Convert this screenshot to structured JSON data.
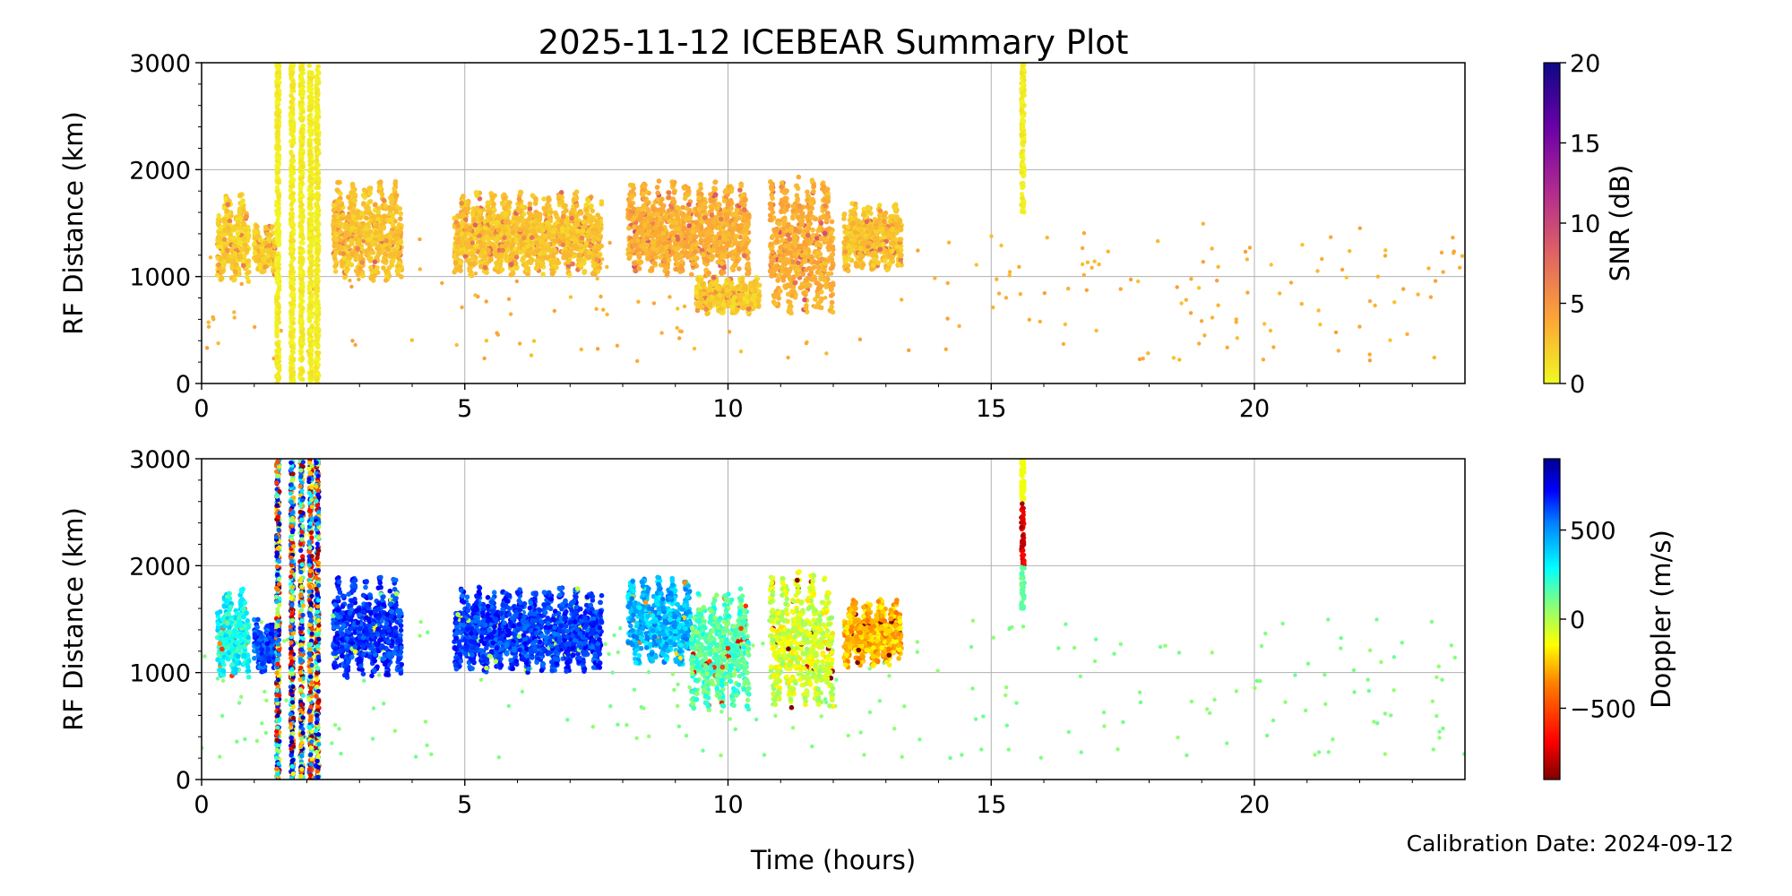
{
  "figure": {
    "title": "2025-11-12 ICEBEAR Summary Plot",
    "xlabel": "Time (hours)",
    "footer": "Calibration Date: 2024-09-12"
  },
  "chart_data": [
    {
      "type": "scatter",
      "panel": "top",
      "title": "2025-11-12 ICEBEAR Summary Plot",
      "xlabel": "Time (hours)",
      "ylabel": "RF Distance (km)",
      "xlim": [
        0,
        24
      ],
      "ylim": [
        0,
        3000
      ],
      "xticks": [
        0,
        5,
        10,
        15,
        20
      ],
      "yticks": [
        0,
        1000,
        2000,
        3000
      ],
      "grid": true,
      "color_by": "SNR",
      "colorbar": {
        "label": "SNR (dB)",
        "range": [
          0,
          20
        ],
        "ticks": [
          0,
          5,
          10,
          15,
          20
        ],
        "colormap": "plasma_r",
        "colors": [
          "#f0f921",
          "#fca636",
          "#e16462",
          "#b12a90",
          "#6a00a8",
          "#0d0887"
        ]
      },
      "vertical_bands": [
        {
          "x": 1.45,
          "from": 0,
          "to": 3000
        },
        {
          "x": 1.72,
          "from": 0,
          "to": 3000
        },
        {
          "x": 1.9,
          "from": 0,
          "to": 3000
        },
        {
          "x": 2.07,
          "from": 0,
          "to": 3000
        },
        {
          "x": 2.2,
          "from": 0,
          "to": 3000
        },
        {
          "x": 15.6,
          "from": 1600,
          "to": 3000
        }
      ],
      "clusters": [
        {
          "x_start": 0.3,
          "x_end": 0.9,
          "y_min": 950,
          "y_max": 1800,
          "snr": 2
        },
        {
          "x_start": 1.0,
          "x_end": 1.4,
          "y_min": 1000,
          "y_max": 1500,
          "snr": 2
        },
        {
          "x_start": 2.5,
          "x_end": 3.8,
          "y_min": 950,
          "y_max": 1900,
          "snr": 2.5
        },
        {
          "x_start": 4.8,
          "x_end": 7.6,
          "y_min": 1000,
          "y_max": 1800,
          "snr": 2.5
        },
        {
          "x_start": 8.1,
          "x_end": 10.4,
          "y_min": 1000,
          "y_max": 1900,
          "snr": 3.5
        },
        {
          "x_start": 9.4,
          "x_end": 10.6,
          "y_min": 650,
          "y_max": 1000,
          "snr": 2
        },
        {
          "x_start": 10.8,
          "x_end": 12.0,
          "y_min": 650,
          "y_max": 1950,
          "snr": 3.5
        },
        {
          "x_start": 12.2,
          "x_end": 13.3,
          "y_min": 1050,
          "y_max": 1700,
          "snr": 2.5
        }
      ],
      "scattered": {
        "x_range": [
          0,
          24
        ],
        "y_range": [
          200,
          1500
        ],
        "snr": 3
      }
    },
    {
      "type": "scatter",
      "panel": "bottom",
      "xlabel": "Time (hours)",
      "ylabel": "RF Distance (km)",
      "xlim": [
        0,
        24
      ],
      "ylim": [
        0,
        3000
      ],
      "xticks": [
        0,
        5,
        10,
        15,
        20
      ],
      "yticks": [
        0,
        1000,
        2000,
        3000
      ],
      "grid": true,
      "color_by": "Doppler",
      "colorbar": {
        "label": "Doppler (m/s)",
        "range": [
          -900,
          900
        ],
        "ticks": [
          -500,
          0,
          500
        ],
        "tick_labels": [
          "−500",
          "0",
          "500"
        ],
        "colormap": "jet_r",
        "colors": [
          "#7f0000",
          "#ff0000",
          "#ff8000",
          "#ffff00",
          "#80ff80",
          "#00ffff",
          "#0080ff",
          "#0000ff",
          "#00008f"
        ]
      },
      "vertical_bands": [
        {
          "x": 1.45,
          "from": 0,
          "to": 3000
        },
        {
          "x": 1.72,
          "from": 0,
          "to": 3000
        },
        {
          "x": 1.9,
          "from": 0,
          "to": 3000
        },
        {
          "x": 2.07,
          "from": 0,
          "to": 3000
        },
        {
          "x": 2.2,
          "from": 0,
          "to": 3000
        },
        {
          "x": 15.6,
          "from": 1600,
          "to": 3000
        }
      ],
      "clusters": [
        {
          "x_start": 0.3,
          "x_end": 0.9,
          "y_min": 950,
          "y_max": 1800,
          "doppler": 200
        },
        {
          "x_start": 1.0,
          "x_end": 1.4,
          "y_min": 1000,
          "y_max": 1500,
          "doppler": 550
        },
        {
          "x_start": 2.5,
          "x_end": 3.8,
          "y_min": 950,
          "y_max": 1900,
          "doppler": 600
        },
        {
          "x_start": 4.8,
          "x_end": 7.6,
          "y_min": 1000,
          "y_max": 1800,
          "doppler": 580
        },
        {
          "x_start": 8.1,
          "x_end": 9.3,
          "y_min": 1050,
          "y_max": 1900,
          "doppler": 350
        },
        {
          "x_start": 9.3,
          "x_end": 10.4,
          "y_min": 650,
          "y_max": 1800,
          "doppler": 80
        },
        {
          "x_start": 10.8,
          "x_end": 12.0,
          "y_min": 650,
          "y_max": 1950,
          "doppler": -150
        },
        {
          "x_start": 12.2,
          "x_end": 13.3,
          "y_min": 1050,
          "y_max": 1700,
          "doppler": -350
        }
      ],
      "scattered": {
        "x_range": [
          0,
          24
        ],
        "y_range": [
          200,
          1500
        ],
        "doppler": 0
      }
    }
  ]
}
